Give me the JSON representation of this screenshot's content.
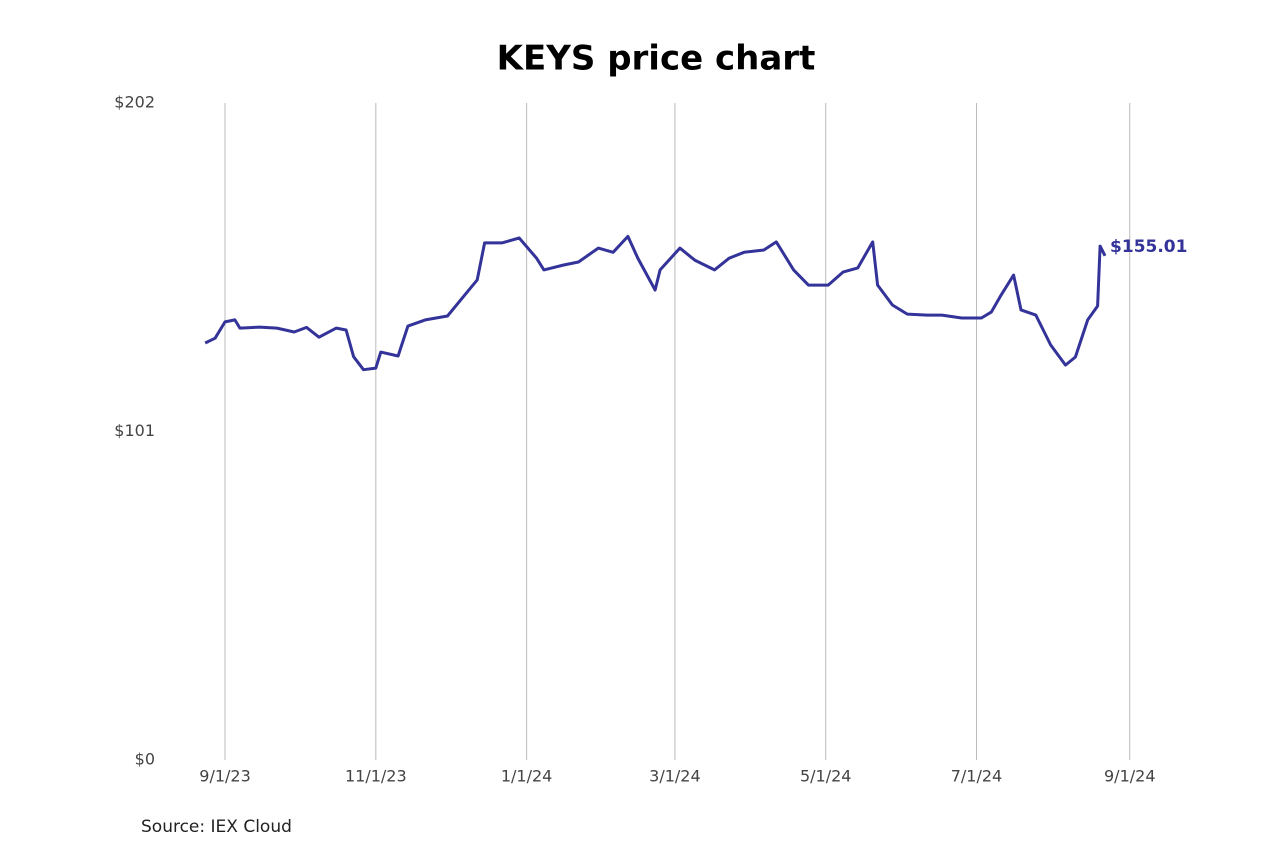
{
  "chart_data": {
    "type": "line",
    "title": "KEYS price chart",
    "source": "Source: IEX Cloud",
    "x": [
      "2023-08-24",
      "2023-08-28",
      "2023-09-01",
      "2023-09-05",
      "2023-09-07",
      "2023-09-15",
      "2023-09-22",
      "2023-09-29",
      "2023-10-04",
      "2023-10-09",
      "2023-10-16",
      "2023-10-20",
      "2023-10-23",
      "2023-10-27",
      "2023-11-01",
      "2023-11-03",
      "2023-11-10",
      "2023-11-14",
      "2023-11-21",
      "2023-11-30",
      "2023-12-07",
      "2023-12-12",
      "2023-12-15",
      "2023-12-22",
      "2023-12-29",
      "2024-01-05",
      "2024-01-08",
      "2024-01-16",
      "2024-01-22",
      "2024-01-30",
      "2024-02-05",
      "2024-02-11",
      "2024-02-15",
      "2024-02-22",
      "2024-02-24",
      "2024-03-03",
      "2024-03-09",
      "2024-03-17",
      "2024-03-23",
      "2024-03-29",
      "2024-04-06",
      "2024-04-11",
      "2024-04-18",
      "2024-04-24",
      "2024-05-02",
      "2024-05-08",
      "2024-05-14",
      "2024-05-20",
      "2024-05-22",
      "2024-05-28",
      "2024-06-03",
      "2024-06-11",
      "2024-06-17",
      "2024-06-25",
      "2024-07-03",
      "2024-07-07",
      "2024-07-11",
      "2024-07-16",
      "2024-07-19",
      "2024-07-25",
      "2024-07-31",
      "2024-08-06",
      "2024-08-10",
      "2024-08-15",
      "2024-08-19",
      "2024-08-20",
      "2024-08-22"
    ],
    "values": [
      128.2,
      129.7,
      134.7,
      135.3,
      132.8,
      133.1,
      132.8,
      131.6,
      133,
      130,
      132.8,
      132.2,
      124,
      120,
      120.5,
      125.4,
      124.2,
      133.4,
      135.3,
      136.5,
      143,
      147.6,
      159,
      159,
      160.5,
      154.3,
      150.7,
      152.2,
      153.1,
      157.4,
      156.1,
      161,
      154.3,
      144.5,
      150.7,
      157.4,
      153.7,
      150.7,
      154.3,
      156.1,
      156.8,
      159.3,
      150.7,
      146,
      146,
      150,
      151.3,
      159.3,
      146,
      139.9,
      137.1,
      136.8,
      136.8,
      135.9,
      135.9,
      137.7,
      143,
      149.1,
      138.4,
      136.8,
      127.6,
      121.4,
      123.9,
      135.3,
      139.6,
      158,
      155.01
    ],
    "value_labels": [
      null,
      null,
      null,
      null,
      null,
      null,
      null,
      null,
      null,
      null,
      null,
      null,
      null,
      null,
      null,
      null,
      null,
      null,
      null,
      null,
      null,
      null,
      null,
      null,
      null,
      null,
      null,
      null,
      null,
      null,
      null,
      null,
      null,
      null,
      null,
      null,
      null,
      null,
      null,
      null,
      null,
      null,
      null,
      null,
      null,
      null,
      null,
      null,
      null,
      null,
      null,
      null,
      null,
      null,
      null,
      null,
      null,
      null,
      null,
      null,
      null,
      null,
      null,
      null,
      null,
      null,
      "$155.01"
    ],
    "color": "#333399",
    "xlim": [
      "2023-08-15",
      "2024-09-10"
    ],
    "xticks": [
      {
        "value": "2023-09-01",
        "label": "9/1/23"
      },
      {
        "value": "2023-11-01",
        "label": "11/1/23"
      },
      {
        "value": "2024-01-01",
        "label": "1/1/24"
      },
      {
        "value": "2024-03-01",
        "label": "3/1/24"
      },
      {
        "value": "2024-05-01",
        "label": "5/1/24"
      },
      {
        "value": "2024-07-01",
        "label": "7/1/24"
      },
      {
        "value": "2024-09-01",
        "label": "9/1/24"
      }
    ],
    "ylim": [
      0,
      202
    ],
    "yticks": [
      {
        "value": 0,
        "label": "$0"
      },
      {
        "value": 101,
        "label": "$101"
      },
      {
        "value": 202,
        "label": "$202"
      }
    ],
    "grid": true
  }
}
